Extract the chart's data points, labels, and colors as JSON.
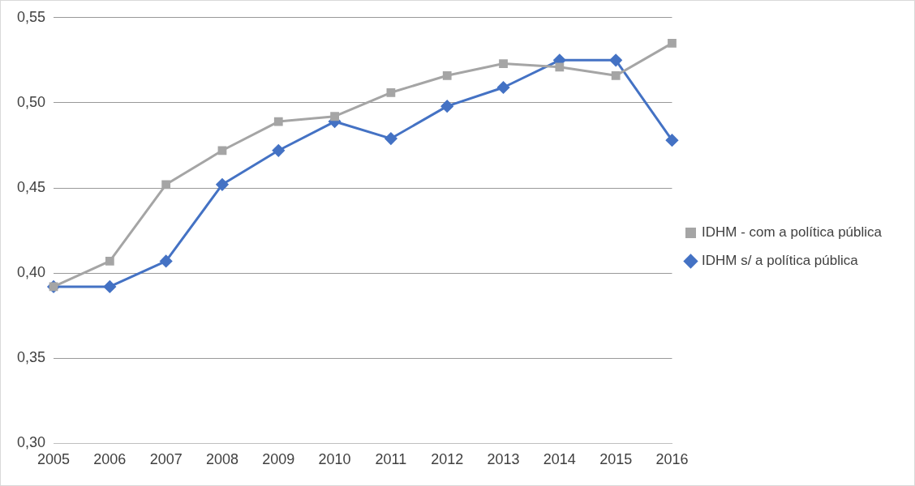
{
  "chart_data": {
    "type": "line",
    "categories": [
      "2005",
      "2006",
      "2007",
      "2008",
      "2009",
      "2010",
      "2011",
      "2012",
      "2013",
      "2014",
      "2015",
      "2016"
    ],
    "series": [
      {
        "name": "IDHM s/ a política pública",
        "color": "#4472c4",
        "marker": "diamond",
        "values": [
          0.392,
          0.392,
          0.407,
          0.452,
          0.472,
          0.489,
          0.479,
          0.498,
          0.509,
          0.525,
          0.525,
          0.478
        ]
      },
      {
        "name": "IDHM - com a política pública",
        "color": "#a5a5a5",
        "marker": "square",
        "values": [
          0.392,
          0.407,
          0.452,
          0.472,
          0.489,
          0.492,
          0.506,
          0.516,
          0.523,
          0.521,
          0.516,
          0.535
        ]
      }
    ],
    "ylim": [
      0.3,
      0.55
    ],
    "yticks": [
      {
        "value": 0.3,
        "label": "0,30"
      },
      {
        "value": 0.35,
        "label": "0,35"
      },
      {
        "value": 0.4,
        "label": "0,40"
      },
      {
        "value": 0.45,
        "label": "0,45"
      },
      {
        "value": 0.5,
        "label": "0,50"
      },
      {
        "value": 0.55,
        "label": "0,55"
      }
    ],
    "grid": "y",
    "legend": "right",
    "line_style": "solid"
  }
}
